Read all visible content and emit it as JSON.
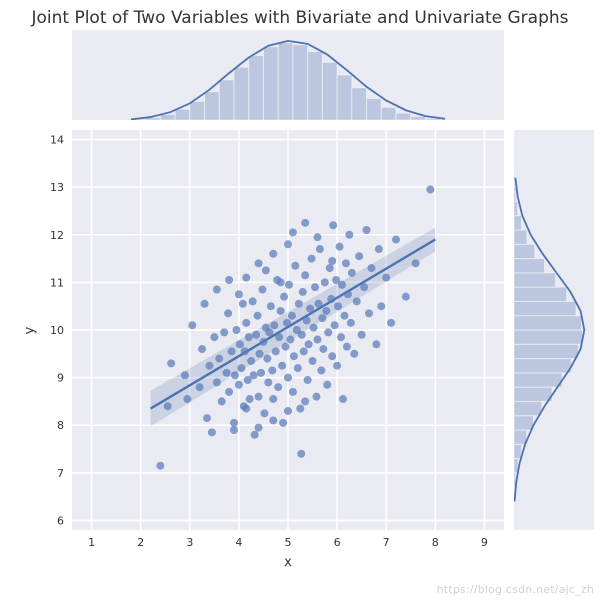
{
  "title": "Joint Plot of Two Variables with Bivariate and Univariate Graphs",
  "xlabel": "x",
  "ylabel": "y",
  "watermark": "https://blog.csdn.net/ajc_zh",
  "colors": {
    "panel_bg": "#eaeaf2",
    "grid": "#ffffff",
    "point": "#5a7cb8",
    "line": "#4c72b0",
    "ci": "#4c72b0",
    "kde": "#4c72b0",
    "hist_fill": "#5a7cb8",
    "hist_edge": "#fcfdfe",
    "text": "#333333"
  },
  "fontsize": {
    "title": 17,
    "axis_label": 13,
    "tick": 11
  },
  "scatter": {
    "type": "scatter",
    "xlim": [
      0.6,
      9.4
    ],
    "ylim": [
      5.8,
      14.2
    ],
    "xticks": [
      1,
      2,
      3,
      4,
      5,
      6,
      7,
      8,
      9
    ],
    "yticks": [
      6,
      7,
      8,
      9,
      10,
      11,
      12,
      13,
      14
    ],
    "marker_radius": 4.0,
    "points": [
      [
        2.4,
        7.15
      ],
      [
        2.55,
        8.4
      ],
      [
        2.62,
        9.3
      ],
      [
        2.9,
        9.05
      ],
      [
        2.95,
        8.55
      ],
      [
        3.05,
        10.1
      ],
      [
        3.2,
        8.8
      ],
      [
        3.25,
        9.6
      ],
      [
        3.35,
        8.15
      ],
      [
        3.4,
        9.25
      ],
      [
        3.45,
        7.85
      ],
      [
        3.5,
        9.85
      ],
      [
        3.55,
        8.9
      ],
      [
        3.6,
        9.4
      ],
      [
        3.65,
        8.5
      ],
      [
        3.7,
        9.95
      ],
      [
        3.75,
        9.1
      ],
      [
        3.78,
        10.35
      ],
      [
        3.8,
        8.7
      ],
      [
        3.85,
        9.55
      ],
      [
        3.9,
        7.9
      ],
      [
        3.92,
        9.05
      ],
      [
        3.95,
        10.0
      ],
      [
        4.0,
        8.85
      ],
      [
        4.02,
        9.7
      ],
      [
        4.05,
        9.2
      ],
      [
        4.08,
        10.55
      ],
      [
        4.1,
        8.4
      ],
      [
        4.12,
        9.55
      ],
      [
        4.15,
        10.15
      ],
      [
        4.18,
        8.95
      ],
      [
        4.2,
        9.85
      ],
      [
        4.22,
        8.55
      ],
      [
        4.25,
        9.35
      ],
      [
        4.28,
        10.6
      ],
      [
        4.3,
        9.05
      ],
      [
        4.32,
        7.8
      ],
      [
        4.35,
        9.9
      ],
      [
        4.38,
        10.3
      ],
      [
        4.4,
        8.6
      ],
      [
        4.42,
        9.5
      ],
      [
        4.45,
        9.1
      ],
      [
        4.48,
        10.85
      ],
      [
        4.5,
        9.75
      ],
      [
        4.52,
        8.25
      ],
      [
        4.55,
        10.05
      ],
      [
        4.58,
        9.4
      ],
      [
        4.6,
        8.9
      ],
      [
        4.62,
        9.95
      ],
      [
        4.65,
        10.5
      ],
      [
        4.68,
        9.15
      ],
      [
        4.7,
        8.55
      ],
      [
        4.72,
        10.1
      ],
      [
        4.75,
        9.55
      ],
      [
        4.78,
        11.05
      ],
      [
        4.8,
        8.8
      ],
      [
        4.82,
        9.85
      ],
      [
        4.85,
        10.4
      ],
      [
        4.88,
        9.25
      ],
      [
        4.9,
        8.05
      ],
      [
        4.92,
        10.7
      ],
      [
        4.95,
        9.65
      ],
      [
        4.98,
        10.15
      ],
      [
        5.0,
        9.0
      ],
      [
        5.02,
        10.95
      ],
      [
        5.05,
        9.8
      ],
      [
        5.08,
        10.3
      ],
      [
        5.1,
        8.7
      ],
      [
        5.12,
        9.45
      ],
      [
        5.15,
        11.35
      ],
      [
        5.18,
        10.0
      ],
      [
        5.2,
        9.2
      ],
      [
        5.22,
        10.55
      ],
      [
        5.25,
        8.35
      ],
      [
        5.27,
        7.4
      ],
      [
        5.28,
        9.9
      ],
      [
        5.3,
        10.8
      ],
      [
        5.32,
        9.55
      ],
      [
        5.35,
        11.15
      ],
      [
        5.38,
        10.2
      ],
      [
        5.4,
        8.95
      ],
      [
        5.42,
        9.7
      ],
      [
        5.45,
        10.45
      ],
      [
        5.48,
        11.5
      ],
      [
        5.5,
        9.35
      ],
      [
        5.52,
        10.05
      ],
      [
        5.55,
        10.9
      ],
      [
        5.58,
        8.6
      ],
      [
        5.6,
        9.8
      ],
      [
        5.62,
        10.55
      ],
      [
        5.65,
        11.7
      ],
      [
        5.68,
        9.15
      ],
      [
        5.7,
        10.25
      ],
      [
        5.72,
        9.6
      ],
      [
        5.75,
        11.0
      ],
      [
        5.78,
        10.4
      ],
      [
        5.8,
        8.85
      ],
      [
        5.82,
        9.95
      ],
      [
        5.85,
        11.3
      ],
      [
        5.88,
        10.65
      ],
      [
        5.9,
        9.45
      ],
      [
        5.92,
        12.2
      ],
      [
        5.95,
        10.1
      ],
      [
        5.98,
        11.05
      ],
      [
        6.0,
        9.25
      ],
      [
        6.02,
        10.5
      ],
      [
        6.05,
        11.75
      ],
      [
        6.08,
        9.85
      ],
      [
        6.1,
        10.95
      ],
      [
        6.12,
        8.55
      ],
      [
        6.15,
        10.3
      ],
      [
        6.18,
        11.4
      ],
      [
        6.2,
        9.65
      ],
      [
        6.22,
        10.75
      ],
      [
        6.25,
        12.0
      ],
      [
        6.28,
        10.15
      ],
      [
        6.3,
        11.2
      ],
      [
        6.35,
        9.5
      ],
      [
        6.4,
        10.6
      ],
      [
        6.45,
        11.55
      ],
      [
        6.5,
        9.9
      ],
      [
        6.55,
        10.9
      ],
      [
        6.6,
        12.1
      ],
      [
        6.65,
        10.35
      ],
      [
        6.7,
        11.3
      ],
      [
        6.8,
        9.7
      ],
      [
        6.85,
        11.7
      ],
      [
        6.9,
        10.5
      ],
      [
        7.0,
        11.1
      ],
      [
        7.1,
        10.15
      ],
      [
        7.2,
        11.9
      ],
      [
        7.4,
        10.7
      ],
      [
        7.6,
        11.4
      ],
      [
        7.9,
        12.95
      ],
      [
        4.15,
        11.1
      ],
      [
        4.4,
        11.4
      ],
      [
        4.55,
        11.25
      ],
      [
        4.7,
        11.6
      ],
      [
        4.85,
        11.0
      ],
      [
        5.0,
        11.8
      ],
      [
        5.1,
        12.05
      ],
      [
        5.35,
        12.25
      ],
      [
        5.6,
        11.95
      ],
      [
        5.9,
        11.45
      ],
      [
        3.3,
        10.55
      ],
      [
        3.55,
        10.85
      ],
      [
        3.8,
        11.05
      ],
      [
        4.0,
        10.75
      ],
      [
        3.9,
        8.05
      ],
      [
        4.15,
        8.35
      ],
      [
        4.4,
        7.95
      ],
      [
        4.7,
        8.1
      ],
      [
        5.0,
        8.3
      ],
      [
        5.35,
        8.5
      ]
    ],
    "regression": {
      "x": [
        2.2,
        8.0
      ],
      "y": [
        8.35,
        11.9
      ],
      "ci_width": 0.25
    }
  },
  "x_marginal": {
    "type": "histogram+kde",
    "range": [
      1.8,
      8.2
    ],
    "bins": [
      [
        1.8,
        2.1,
        0.004
      ],
      [
        2.1,
        2.4,
        0.012
      ],
      [
        2.4,
        2.7,
        0.028
      ],
      [
        2.7,
        3.0,
        0.055
      ],
      [
        3.0,
        3.3,
        0.095
      ],
      [
        3.3,
        3.6,
        0.145
      ],
      [
        3.6,
        3.9,
        0.205
      ],
      [
        3.9,
        4.2,
        0.27
      ],
      [
        4.2,
        4.5,
        0.33
      ],
      [
        4.5,
        4.8,
        0.375
      ],
      [
        4.8,
        5.1,
        0.395
      ],
      [
        5.1,
        5.4,
        0.385
      ],
      [
        5.4,
        5.7,
        0.35
      ],
      [
        5.7,
        6.0,
        0.295
      ],
      [
        6.0,
        6.3,
        0.23
      ],
      [
        6.3,
        6.6,
        0.165
      ],
      [
        6.6,
        6.9,
        0.11
      ],
      [
        6.9,
        7.2,
        0.065
      ],
      [
        7.2,
        7.5,
        0.035
      ],
      [
        7.5,
        7.8,
        0.018
      ],
      [
        7.8,
        8.1,
        0.008
      ]
    ],
    "kde": [
      [
        1.8,
        0.003
      ],
      [
        2.2,
        0.015
      ],
      [
        2.6,
        0.04
      ],
      [
        3.0,
        0.085
      ],
      [
        3.4,
        0.155
      ],
      [
        3.8,
        0.24
      ],
      [
        4.2,
        0.32
      ],
      [
        4.6,
        0.38
      ],
      [
        5.0,
        0.405
      ],
      [
        5.4,
        0.39
      ],
      [
        5.8,
        0.335
      ],
      [
        6.2,
        0.255
      ],
      [
        6.6,
        0.17
      ],
      [
        7.0,
        0.1
      ],
      [
        7.4,
        0.05
      ],
      [
        7.8,
        0.02
      ],
      [
        8.2,
        0.006
      ]
    ],
    "ymax": 0.43
  },
  "y_marginal": {
    "type": "histogram+kde",
    "range": [
      6.4,
      13.4
    ],
    "bins": [
      [
        6.4,
        6.7,
        0.004
      ],
      [
        6.7,
        7.0,
        0.01
      ],
      [
        7.0,
        7.3,
        0.022
      ],
      [
        7.3,
        7.6,
        0.04
      ],
      [
        7.6,
        7.9,
        0.068
      ],
      [
        7.9,
        8.2,
        0.105
      ],
      [
        8.2,
        8.5,
        0.15
      ],
      [
        8.5,
        8.8,
        0.205
      ],
      [
        8.8,
        9.1,
        0.26
      ],
      [
        9.1,
        9.4,
        0.31
      ],
      [
        9.4,
        9.7,
        0.348
      ],
      [
        9.7,
        10.0,
        0.37
      ],
      [
        10.0,
        10.3,
        0.365
      ],
      [
        10.3,
        10.6,
        0.335
      ],
      [
        10.6,
        10.9,
        0.285
      ],
      [
        10.9,
        11.2,
        0.225
      ],
      [
        11.2,
        11.5,
        0.165
      ],
      [
        11.5,
        11.8,
        0.112
      ],
      [
        11.8,
        12.1,
        0.07
      ],
      [
        12.1,
        12.4,
        0.04
      ],
      [
        12.4,
        12.7,
        0.02
      ],
      [
        12.7,
        13.0,
        0.01
      ],
      [
        13.0,
        13.3,
        0.004
      ]
    ],
    "kde": [
      [
        6.4,
        0.003
      ],
      [
        6.8,
        0.012
      ],
      [
        7.2,
        0.03
      ],
      [
        7.6,
        0.06
      ],
      [
        8.0,
        0.105
      ],
      [
        8.4,
        0.165
      ],
      [
        8.8,
        0.235
      ],
      [
        9.2,
        0.305
      ],
      [
        9.6,
        0.36
      ],
      [
        10.0,
        0.38
      ],
      [
        10.4,
        0.36
      ],
      [
        10.8,
        0.305
      ],
      [
        11.2,
        0.23
      ],
      [
        11.6,
        0.155
      ],
      [
        12.0,
        0.09
      ],
      [
        12.4,
        0.045
      ],
      [
        12.8,
        0.02
      ],
      [
        13.2,
        0.007
      ]
    ],
    "xmax": 0.4
  }
}
